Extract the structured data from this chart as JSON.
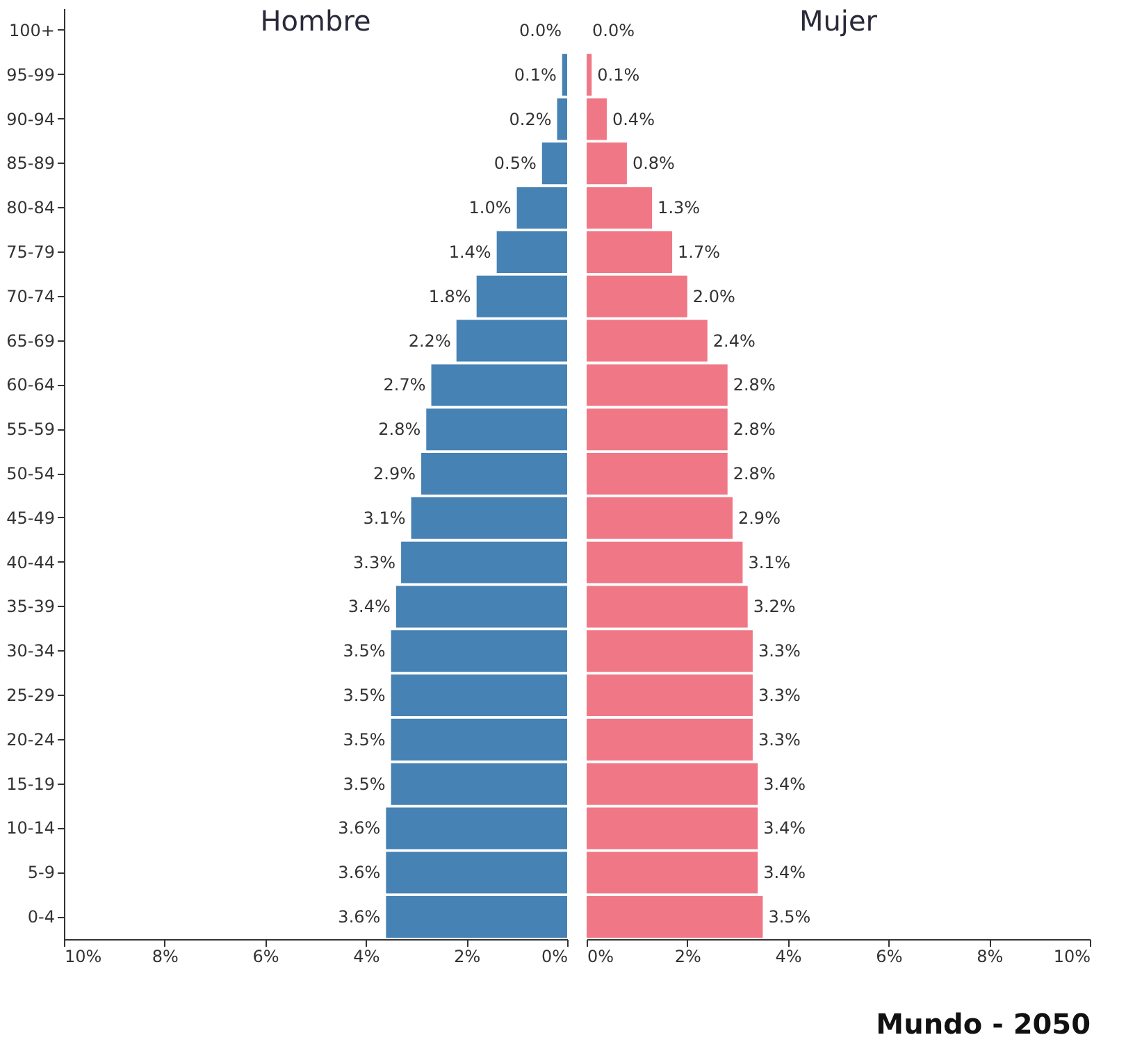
{
  "chart_data": [
    {
      "type": "bar",
      "orientation": "horizontal",
      "categories": [
        "100+",
        "95-99",
        "90-94",
        "85-89",
        "80-84",
        "75-79",
        "70-74",
        "65-69",
        "60-64",
        "55-59",
        "50-54",
        "45-49",
        "40-44",
        "35-39",
        "30-34",
        "25-29",
        "20-24",
        "15-19",
        "10-14",
        "5-9",
        "0-4"
      ],
      "series": [
        {
          "name": "Hombre",
          "color": "#4682b4",
          "values": [
            0.0,
            0.1,
            0.2,
            0.5,
            1.0,
            1.4,
            1.8,
            2.2,
            2.7,
            2.8,
            2.9,
            3.1,
            3.3,
            3.4,
            3.5,
            3.5,
            3.5,
            3.5,
            3.6,
            3.6,
            3.6
          ],
          "value_labels": [
            "0.0%",
            "0.1%",
            "0.2%",
            "0.5%",
            "1.0%",
            "1.4%",
            "1.8%",
            "2.2%",
            "2.7%",
            "2.8%",
            "2.9%",
            "3.1%",
            "3.3%",
            "3.4%",
            "3.5%",
            "3.5%",
            "3.5%",
            "3.5%",
            "3.6%",
            "3.6%",
            "3.6%"
          ]
        }
      ],
      "xlim": [
        10,
        0
      ],
      "xticks": [
        {
          "value": 10,
          "label": "10%"
        },
        {
          "value": 8,
          "label": "8%"
        },
        {
          "value": 6,
          "label": "6%"
        },
        {
          "value": 4,
          "label": "4%"
        },
        {
          "value": 2,
          "label": "2%"
        },
        {
          "value": 0,
          "label": "0%"
        }
      ]
    },
    {
      "type": "bar",
      "orientation": "horizontal",
      "title": "Mundo - 2050",
      "tick_labels": "x",
      "categories": [
        null,
        null,
        null,
        null,
        null,
        null,
        null,
        null,
        null,
        null,
        null,
        null,
        null,
        null,
        null,
        null,
        null,
        null,
        null,
        null,
        null
      ],
      "series": [
        {
          "name": "Mujer",
          "color": "#f07886",
          "values": [
            0.0,
            0.1,
            0.4,
            0.8,
            1.3,
            1.7,
            2.0,
            2.4,
            2.8,
            2.8,
            2.8,
            2.9,
            3.1,
            3.2,
            3.3,
            3.3,
            3.3,
            3.4,
            3.4,
            3.4,
            3.5
          ],
          "value_labels": [
            "0.0%",
            "0.1%",
            "0.4%",
            "0.8%",
            "1.3%",
            "1.7%",
            "2.0%",
            "2.4%",
            "2.8%",
            "2.8%",
            "2.8%",
            "2.9%",
            "3.1%",
            "3.2%",
            "3.3%",
            "3.3%",
            "3.3%",
            "3.4%",
            "3.4%",
            "3.4%",
            "3.5%"
          ]
        }
      ],
      "xlim": [
        0,
        10
      ],
      "xticks": [
        {
          "value": 0,
          "label": "0%"
        },
        {
          "value": 2,
          "label": "2%"
        },
        {
          "value": 4,
          "label": "4%"
        },
        {
          "value": 6,
          "label": "6%"
        },
        {
          "value": 8,
          "label": "8%"
        },
        {
          "value": 10,
          "label": "10%"
        }
      ]
    }
  ]
}
